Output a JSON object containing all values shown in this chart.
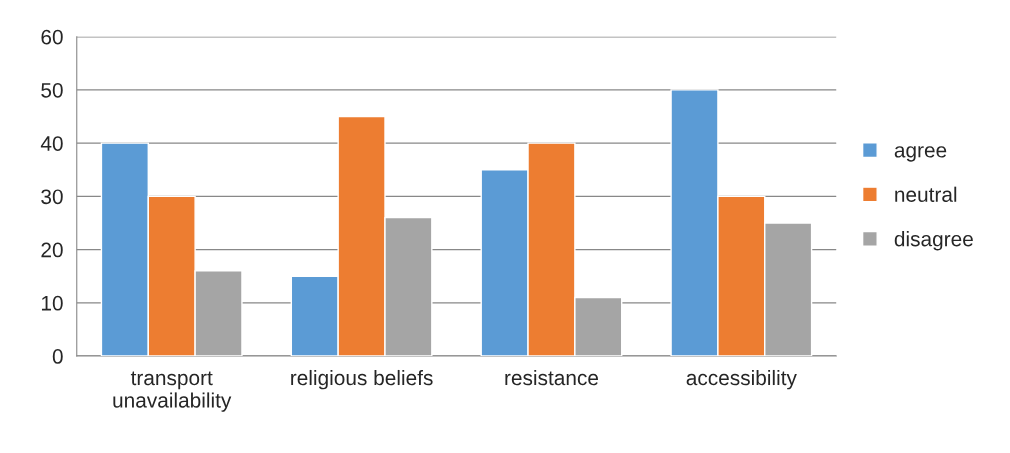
{
  "chart_data": {
    "type": "bar",
    "categories": [
      "transport\nunavailability",
      "religious beliefs",
      "resistance",
      "accessibility"
    ],
    "series": [
      {
        "name": "agree",
        "color": "#5b9bd5",
        "values": [
          40,
          15,
          35,
          50
        ]
      },
      {
        "name": "neutral",
        "color": "#ed7d31",
        "values": [
          30,
          45,
          40,
          30
        ]
      },
      {
        "name": "disagree",
        "color": "#a5a5a5",
        "values": [
          16,
          26,
          11,
          25
        ]
      }
    ],
    "ylim": [
      0,
      60
    ],
    "yticks": [
      0,
      10,
      20,
      30,
      40,
      50,
      60
    ],
    "grid": "y",
    "legend": "right"
  }
}
